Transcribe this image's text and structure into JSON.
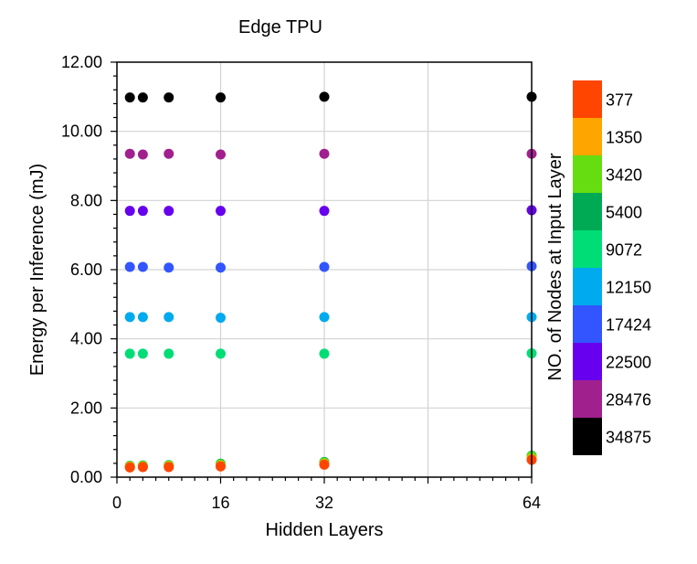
{
  "chart_data": {
    "type": "scatter",
    "title": "Edge TPU",
    "xlabel": "Hidden Layers",
    "ylabel": "Energy per Inference (mJ)",
    "xlim": [
      0,
      64
    ],
    "ylim": [
      0,
      12
    ],
    "x_ticks": [
      "0",
      "16",
      "32",
      "64"
    ],
    "x_tick_values": [
      0,
      16,
      32,
      64
    ],
    "y_ticks": [
      "0.00",
      "2.00",
      "4.00",
      "6.00",
      "8.00",
      "10.00",
      "12.00"
    ],
    "y_tick_values": [
      0,
      2,
      4,
      6,
      8,
      10,
      12
    ],
    "grid": "vertical and horizontal at major ticks",
    "legend_title": "NO. of Nodes at Input Layer",
    "legend_position": "right",
    "x": [
      2,
      4,
      8,
      16,
      32,
      64
    ],
    "series": [
      {
        "name": "377",
        "color": "#ff4500",
        "values": [
          0.28,
          0.29,
          0.29,
          0.31,
          0.36,
          0.5
        ]
      },
      {
        "name": "1350",
        "color": "#ffa500",
        "values": [
          0.3,
          0.3,
          0.31,
          0.33,
          0.38,
          0.53
        ]
      },
      {
        "name": "3420",
        "color": "#66dd11",
        "values": [
          0.32,
          0.33,
          0.34,
          0.37,
          0.42,
          0.6
        ]
      },
      {
        "name": "5400",
        "color": "#00aa55",
        "values": [
          0.33,
          0.34,
          0.35,
          0.39,
          0.44,
          0.62
        ]
      },
      {
        "name": "9072",
        "color": "#00dd77",
        "values": [
          3.57,
          3.57,
          3.57,
          3.57,
          3.57,
          3.58
        ]
      },
      {
        "name": "12150",
        "color": "#00aaee",
        "values": [
          4.63,
          4.63,
          4.63,
          4.61,
          4.63,
          4.63
        ]
      },
      {
        "name": "17424",
        "color": "#3355ff",
        "values": [
          6.08,
          6.08,
          6.06,
          6.06,
          6.08,
          6.1
        ]
      },
      {
        "name": "22500",
        "color": "#6600ee",
        "values": [
          7.7,
          7.7,
          7.7,
          7.7,
          7.7,
          7.72
        ]
      },
      {
        "name": "28476",
        "color": "#a0208e",
        "values": [
          9.35,
          9.33,
          9.35,
          9.33,
          9.35,
          9.35
        ]
      },
      {
        "name": "34875",
        "color": "#000000",
        "values": [
          10.98,
          10.98,
          10.98,
          10.98,
          11.0,
          11.0
        ]
      }
    ]
  }
}
